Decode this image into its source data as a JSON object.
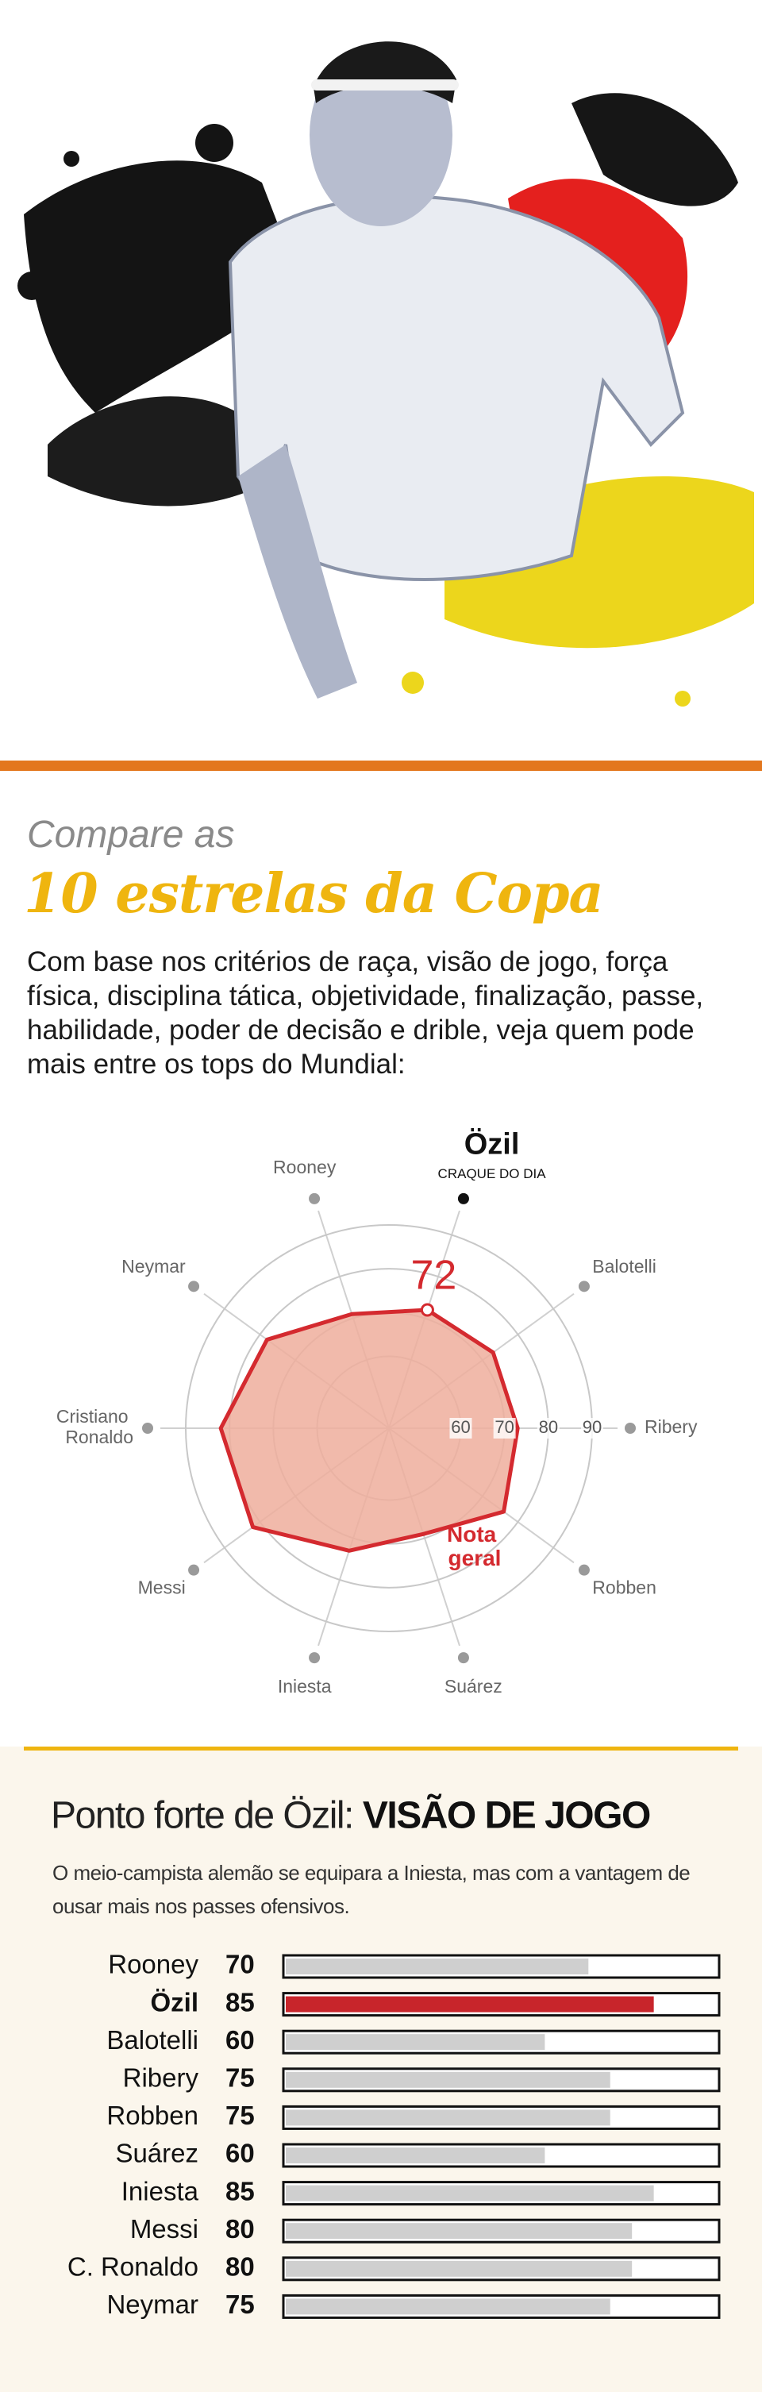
{
  "header": {
    "kicker": "Compare as",
    "title": "10 estrelas da Copa",
    "intro": "Com base nos critérios de raça, visão de jogo, força física, disciplina tática, objetividade, finalização, passe, habilidade, poder de decisão e drible, veja quem pode mais entre os tops do Mundial:"
  },
  "chart_data": [
    {
      "type": "radar",
      "axes": [
        "Özil",
        "Balotelli",
        "Ribery",
        "Robben",
        "Suárez",
        "Iniesta",
        "Messi",
        "Cristiano Ronaldo",
        "Neymar",
        "Rooney"
      ],
      "series": [
        {
          "name": "Nota geral",
          "color": "#d42a2f",
          "values": [
            72,
            73,
            73,
            76,
            69,
            73,
            82,
            82,
            78,
            71
          ]
        }
      ],
      "rlim": [
        43.6,
        95.8
      ],
      "rticks": [
        60,
        70,
        80,
        90
      ],
      "highlight_index": 0,
      "annotation": "CRAQUE DO DIA"
    },
    {
      "type": "bar",
      "orientation": "horizontal",
      "title_prefix": "Ponto forte de Özil:",
      "title_emphasis": "VISÃO DE JOGO",
      "subtitle": "O meio-campista alemão se equipara a Iniesta, mas com a vantagem de ousar mais nos passes ofensivos.",
      "categories": [
        "Rooney",
        "Özil",
        "Balotelli",
        "Ribery",
        "Robben",
        "Suárez",
        "Iniesta",
        "Messi",
        "C. Ronaldo",
        "Neymar"
      ],
      "values": [
        70,
        85,
        60,
        75,
        75,
        60,
        85,
        80,
        80,
        75
      ],
      "xlim": [
        0,
        100
      ],
      "color": "#cfcfcf",
      "highlight_color": "#c8252b",
      "highlight_index": 1
    }
  ]
}
